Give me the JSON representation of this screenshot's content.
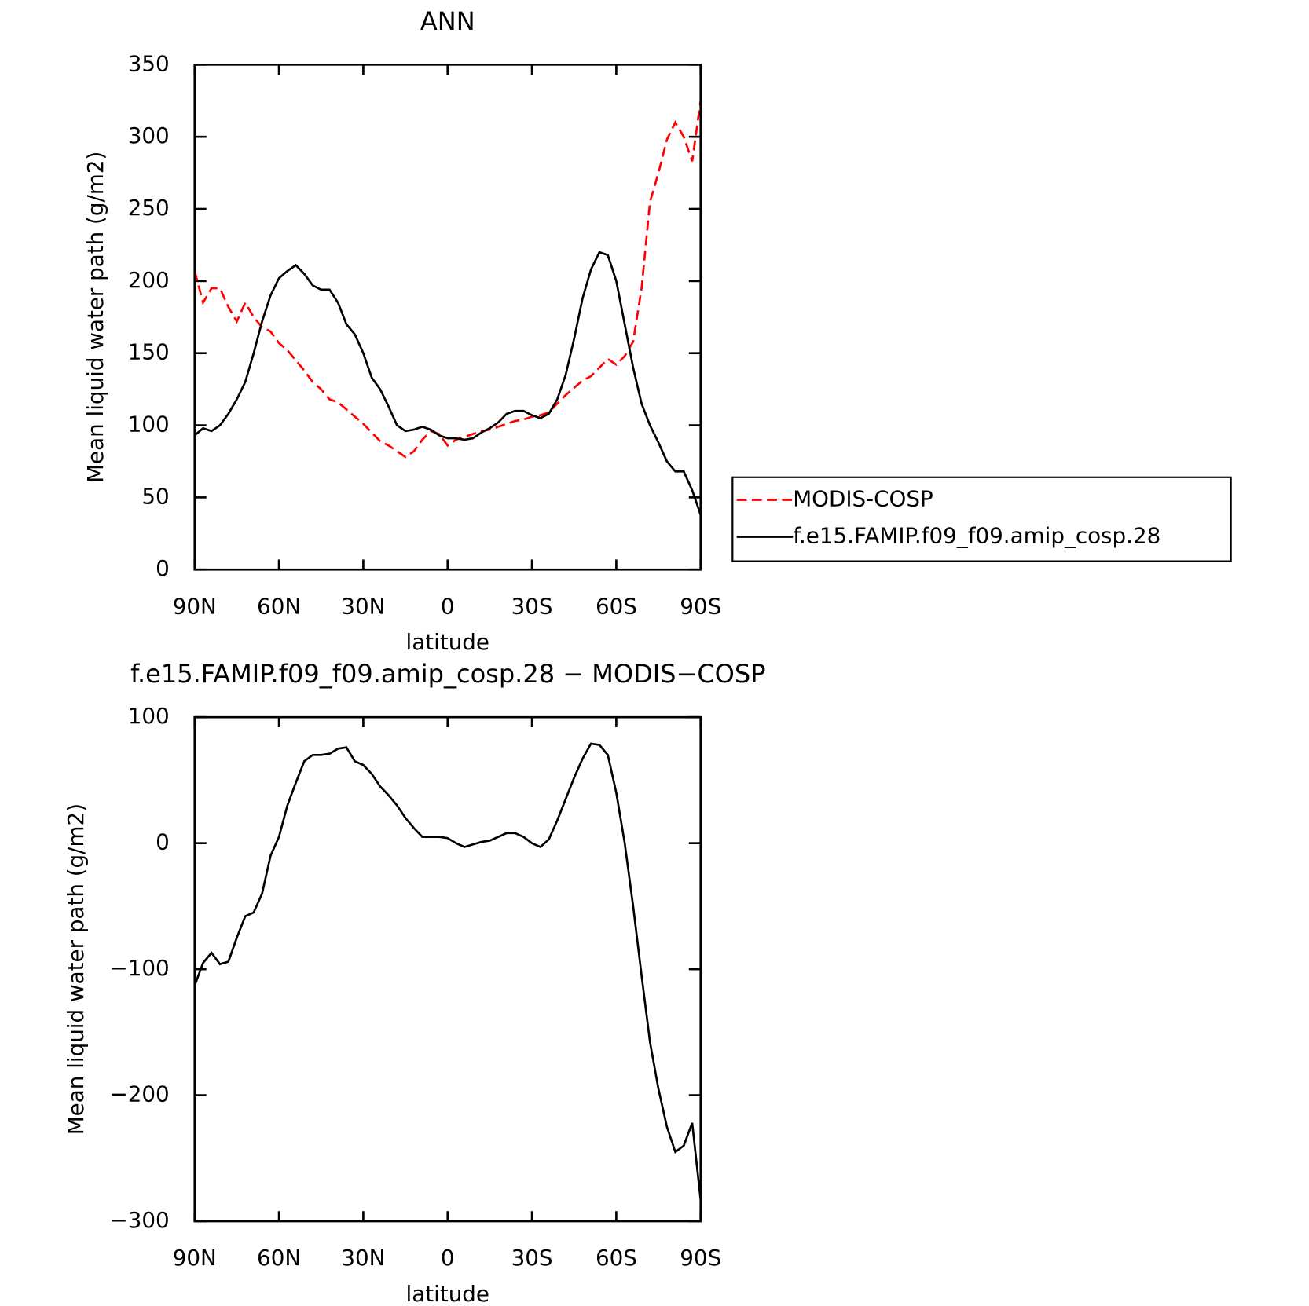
{
  "chart_data": [
    {
      "type": "line",
      "title": "ANN",
      "xlabel": "latitude",
      "ylabel": "Mean liquid water path (g/m2)",
      "x": [
        90,
        87,
        84,
        81,
        78,
        75,
        72,
        69,
        66,
        63,
        60,
        57,
        54,
        51,
        48,
        45,
        42,
        39,
        36,
        33,
        30,
        27,
        24,
        21,
        18,
        15,
        12,
        9,
        6,
        3,
        0,
        -3,
        -6,
        -9,
        -12,
        -15,
        -18,
        -21,
        -24,
        -27,
        -30,
        -33,
        -36,
        -39,
        -42,
        -45,
        -48,
        -51,
        -54,
        -57,
        -60,
        -63,
        -66,
        -69,
        -72,
        -75,
        -78,
        -81,
        -84,
        -87,
        -90
      ],
      "series": [
        {
          "name": "MODIS-COSP",
          "color": "#ff0000",
          "line_style": "dashed",
          "values": [
            207,
            185,
            195,
            195,
            182,
            172,
            185,
            175,
            168,
            165,
            157,
            152,
            145,
            138,
            130,
            125,
            118,
            116,
            111,
            106,
            101,
            95,
            89,
            86,
            82,
            78,
            82,
            90,
            96,
            94,
            86,
            90,
            92,
            94,
            96,
            97,
            99,
            101,
            103,
            104,
            106,
            107,
            109,
            115,
            121,
            126,
            131,
            134,
            140,
            146,
            142,
            148,
            158,
            195,
            255,
            275,
            298,
            310,
            300,
            283,
            325
          ]
        },
        {
          "name": "f.e15.FAMIP.f09_f09.amip_cosp.28",
          "color": "#000000",
          "line_style": "solid",
          "values": [
            93,
            98,
            96,
            100,
            108,
            118,
            130,
            150,
            172,
            190,
            202,
            207,
            211,
            205,
            197,
            194,
            194,
            185,
            170,
            163,
            150,
            133,
            125,
            113,
            100,
            96,
            97,
            99,
            97,
            93,
            91,
            91,
            90,
            91,
            95,
            98,
            102,
            108,
            110,
            110,
            107,
            105,
            108,
            118,
            135,
            160,
            188,
            208,
            220,
            218,
            200,
            170,
            140,
            115,
            100,
            88,
            75,
            68,
            68,
            55,
            38
          ]
        }
      ],
      "xlim": [
        90,
        -90
      ],
      "xticks": [
        {
          "value": 90,
          "label": "90N"
        },
        {
          "value": 60,
          "label": "60N"
        },
        {
          "value": 30,
          "label": "30N"
        },
        0,
        {
          "value": -30,
          "label": "30S"
        },
        {
          "value": -60,
          "label": "60S"
        },
        {
          "value": -90,
          "label": "90S"
        }
      ],
      "ylim": [
        0,
        350
      ],
      "yticks": [
        0,
        50,
        100,
        150,
        200,
        250,
        300,
        350
      ],
      "legend": "outside-right"
    },
    {
      "type": "line",
      "title": "f.e15.FAMIP.f09_f09.amip_cosp.28 − MODIS−COSP",
      "xlabel": "latitude",
      "ylabel": "Mean liquid water path (g/m2)",
      "x": [
        90,
        87,
        84,
        81,
        78,
        75,
        72,
        69,
        66,
        63,
        60,
        57,
        54,
        51,
        48,
        45,
        42,
        39,
        36,
        33,
        30,
        27,
        24,
        21,
        18,
        15,
        12,
        9,
        6,
        3,
        0,
        -3,
        -6,
        -9,
        -12,
        -15,
        -18,
        -21,
        -24,
        -27,
        -30,
        -33,
        -36,
        -39,
        -42,
        -45,
        -48,
        -51,
        -54,
        -57,
        -60,
        -63,
        -66,
        -69,
        -72,
        -75,
        -78,
        -81,
        -84,
        -87,
        -90
      ],
      "series": [
        {
          "color": "#000000",
          "line_style": "solid",
          "values": [
            -113,
            -95,
            -87,
            -96,
            -94,
            -75,
            -58,
            -55,
            -40,
            -10,
            5,
            30,
            48,
            65,
            70,
            70,
            71,
            75,
            76,
            65,
            62,
            55,
            45,
            38,
            30,
            20,
            12,
            5,
            5,
            5,
            4,
            0,
            -3,
            -1,
            1,
            2,
            5,
            8,
            8,
            5,
            0,
            -3,
            3,
            18,
            35,
            52,
            67,
            79,
            78,
            70,
            40,
            0,
            -50,
            -105,
            -158,
            -195,
            -225,
            -245,
            -240,
            -222,
            -283
          ]
        }
      ],
      "xlim": [
        90,
        -90
      ],
      "xticks": [
        {
          "value": 90,
          "label": "90N"
        },
        {
          "value": 60,
          "label": "60N"
        },
        {
          "value": 30,
          "label": "30N"
        },
        0,
        {
          "value": -30,
          "label": "30S"
        },
        {
          "value": -60,
          "label": "60S"
        },
        {
          "value": -90,
          "label": "90S"
        }
      ],
      "ylim": [
        -300,
        100
      ],
      "yticks": [
        {
          "value": -300,
          "label": "−300"
        },
        {
          "value": -200,
          "label": "−200"
        },
        {
          "value": -100,
          "label": "−100"
        },
        0,
        100
      ]
    }
  ]
}
